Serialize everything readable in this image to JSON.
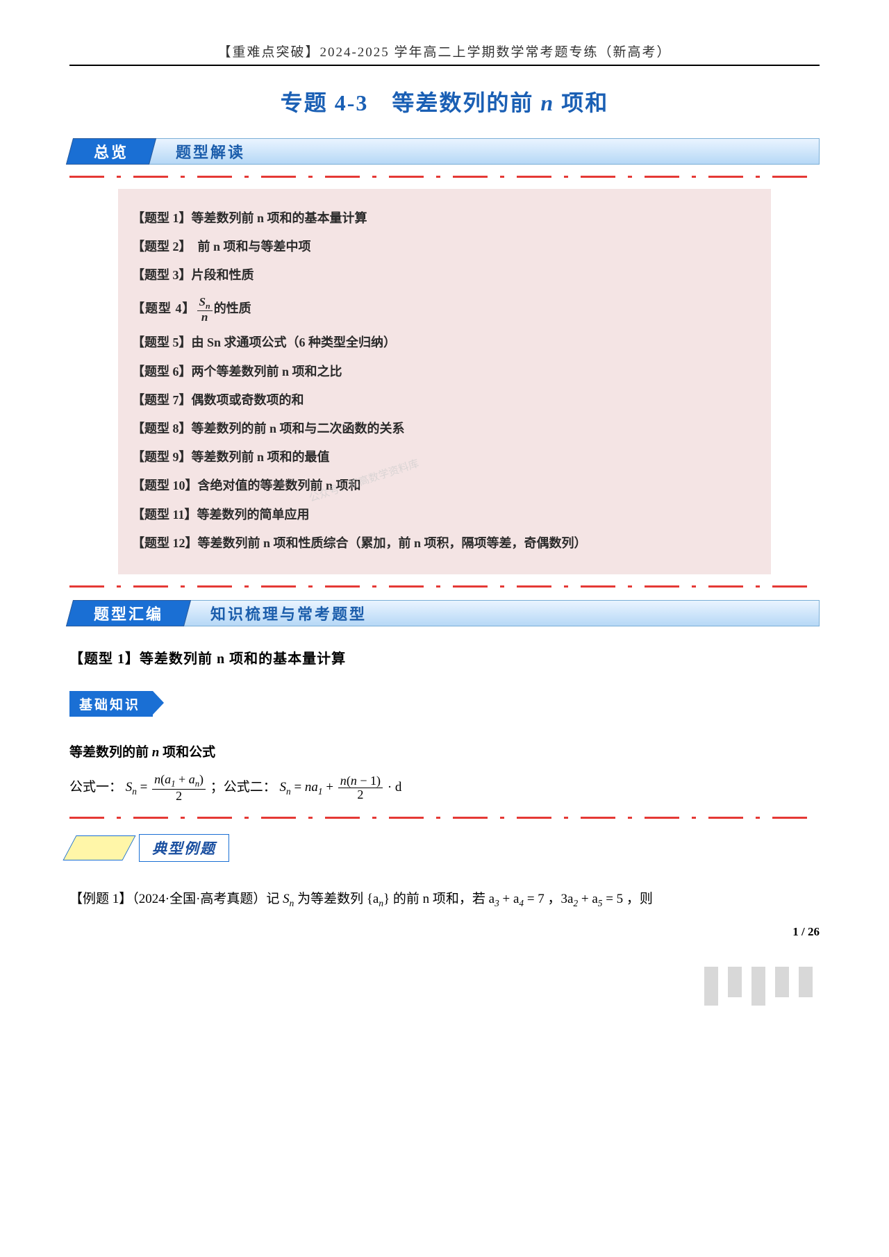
{
  "header": "【重难点突破】2024-2025 学年高二上学期数学常考题专练（新高考）",
  "title_prefix": "专题 4-3　等差数列的前 ",
  "title_n": "n",
  "title_suffix": " 项和",
  "overview_left": "总览",
  "overview_right": "题型解读",
  "types": {
    "t1": "【题型 1】等差数列前 n 项和的基本量计算",
    "t2": "【题型 2】　前 n 项和与等差中项",
    "t3": "【题型 3】片段和性质",
    "t4_pre": "【题型 4】",
    "t4_num": "S",
    "t4_numsub": "n",
    "t4_den": "n",
    "t4_post": "的性质",
    "t5": "【题型 5】由 Sn 求通项公式（6 种类型全归纳）",
    "t6": "【题型 6】两个等差数列前 n 项和之比",
    "t7": "【题型 7】偶数项或奇数项的和",
    "t8": "【题型 8】等差数列的前 n 项和与二次函数的关系",
    "t9": "【题型 9】等差数列前 n 项和的最值",
    "t10": "【题型 10】含绝对值的等差数列前 n 项和",
    "t11": "【题型 11】等差数列的简单应用",
    "t12": "【题型 12】等差数列前 n 项和性质综合（累加，前 n 项积，隔项等差，奇偶数列）"
  },
  "watermark": "公众号：初高数学资料库",
  "compile_left": "题型汇编",
  "compile_right": "知识梳理与常考题型",
  "sub_heading": "【题型 1】等差数列前 n 项和的基本量计算",
  "badge_basic": "基础知识",
  "formula_heading": "等差数列的前 n 项和公式",
  "formula": {
    "f1_lead": "公式一：",
    "Sn": "S",
    "eq": " = ",
    "num1_a": "n(a",
    "num1_b": " + a",
    "num1_c": ")",
    "den1": "2",
    "sep": " ；公式二：",
    "f2_mid": " = na",
    "plus": " + ",
    "num2_a": "n(n − 1)",
    "den2": "2",
    "dot_d": " · d"
  },
  "example_label": "典型例题",
  "problem": {
    "lead": "【例题 1】（2024·全国·高考真题）记 ",
    "Sn": "S",
    "mid1": " 为等差数列 {a",
    "mid2": "} 的前 n 项和，若 a",
    "mid3": " + a",
    "mid4": " = 7 ，3a",
    "mid5": " + a",
    "mid6": " = 5 ，则"
  },
  "page": "1 / 26",
  "colors": {
    "accent_blue": "#1a6fd4",
    "title_blue": "#1a5fb4",
    "box_pink": "#f4e4e4",
    "badge_yellow": "#fff6a8",
    "divider_red": "#e53935"
  }
}
